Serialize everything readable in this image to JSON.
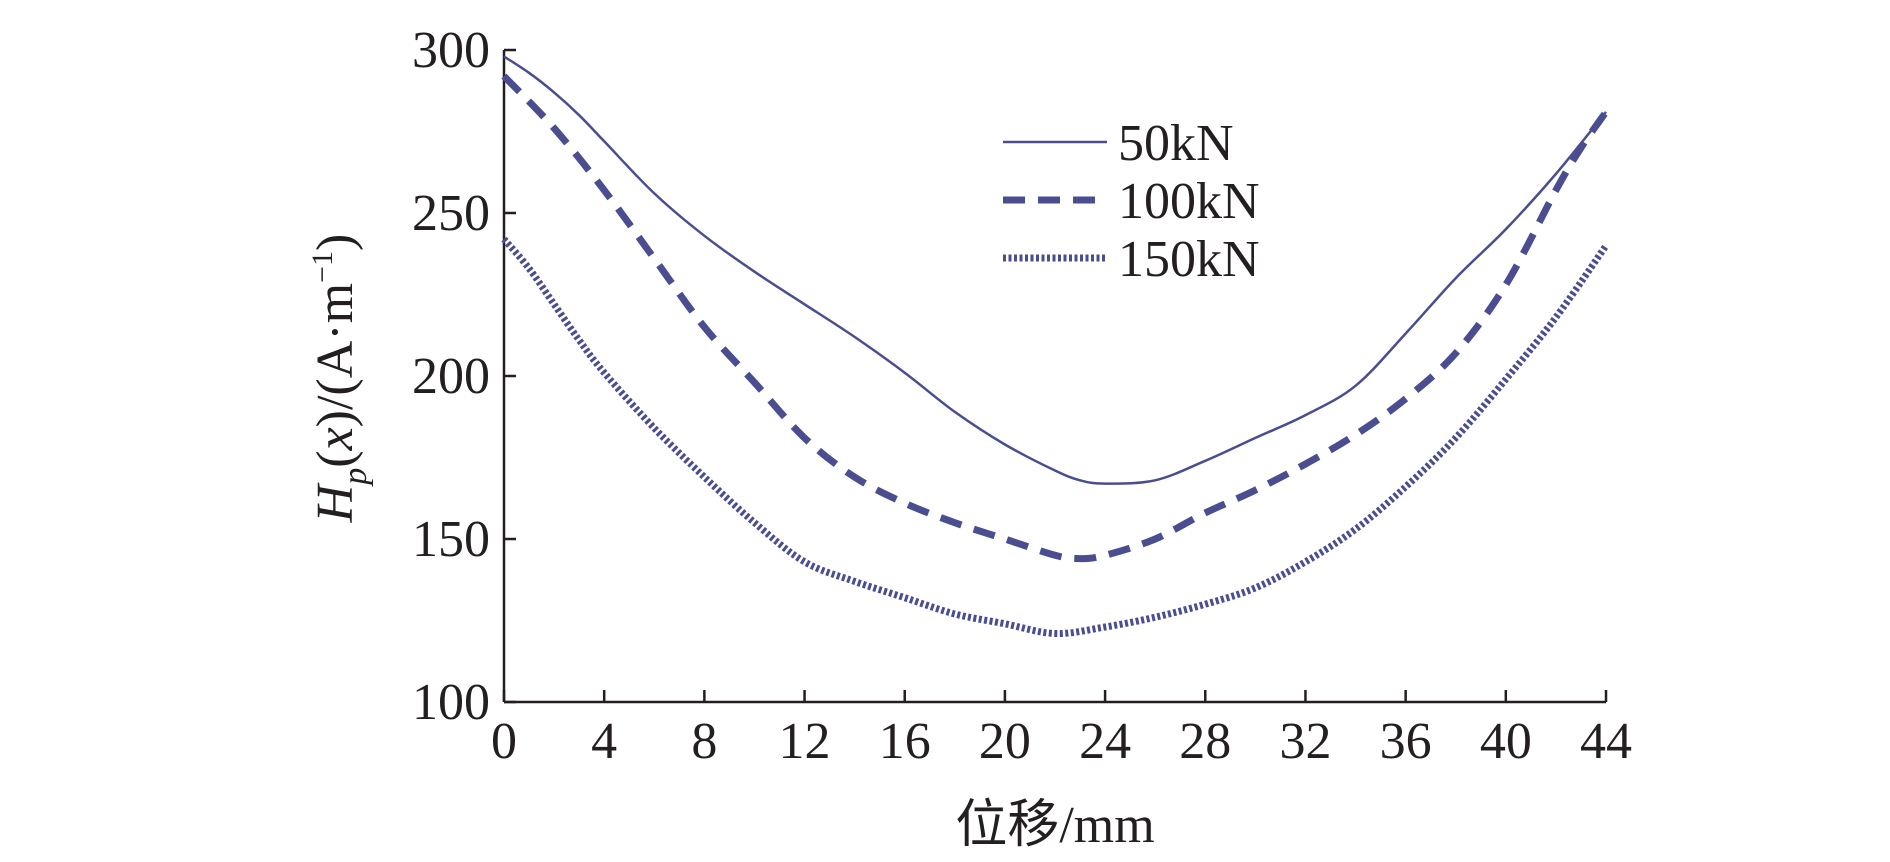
{
  "chart_data": {
    "type": "line",
    "xlabel": "位移/mm",
    "ylabel": "H_p(x)/(A·m^-1)",
    "ylabel_parts": {
      "H": "H",
      "p": "p",
      "x": "x",
      "unit_open": ")/(A·m",
      "exp": "−1",
      "close": ")"
    },
    "xlim": [
      0,
      44
    ],
    "ylim": [
      100,
      300
    ],
    "x_ticks": [
      0,
      4,
      8,
      12,
      16,
      20,
      24,
      28,
      32,
      36,
      40,
      44
    ],
    "y_ticks": [
      100,
      150,
      200,
      250,
      300
    ],
    "grid": false,
    "legend_position": "top-right",
    "series_color": "#4a4d8f",
    "series": [
      {
        "name": "50kN",
        "style": "solid",
        "x": [
          0,
          1,
          2,
          3,
          4,
          6,
          8,
          10,
          12,
          14,
          16,
          18,
          20,
          22,
          23,
          24,
          26,
          28,
          30,
          32,
          34,
          36,
          38,
          40,
          42,
          44
        ],
        "y": [
          298,
          293,
          287,
          280,
          272,
          256,
          243,
          232,
          222,
          212,
          201,
          189,
          179,
          171,
          168,
          167,
          168,
          174,
          181,
          188,
          197,
          213,
          230,
          245,
          262,
          281
        ]
      },
      {
        "name": "100kN",
        "style": "dashed",
        "x": [
          0,
          2,
          4,
          6,
          8,
          10,
          12,
          14,
          16,
          18,
          20,
          22,
          23,
          24,
          26,
          28,
          30,
          32,
          34,
          36,
          38,
          40,
          42,
          43,
          44
        ],
        "y": [
          292,
          276,
          257,
          236,
          215,
          198,
          181,
          169,
          161,
          155,
          150,
          145,
          144,
          145,
          150,
          158,
          165,
          173,
          182,
          193,
          207,
          228,
          257,
          270,
          281
        ]
      },
      {
        "name": "150kN",
        "style": "dotted",
        "x": [
          0,
          1,
          2,
          3,
          4,
          6,
          8,
          10,
          12,
          14,
          16,
          18,
          20,
          22,
          24,
          26,
          28,
          30,
          32,
          34,
          36,
          38,
          40,
          42,
          44
        ],
        "y": [
          242,
          233,
          222,
          211,
          201,
          184,
          169,
          155,
          143,
          137,
          132,
          127,
          124,
          121,
          123,
          126,
          130,
          135,
          143,
          153,
          166,
          181,
          199,
          218,
          240
        ]
      }
    ]
  }
}
